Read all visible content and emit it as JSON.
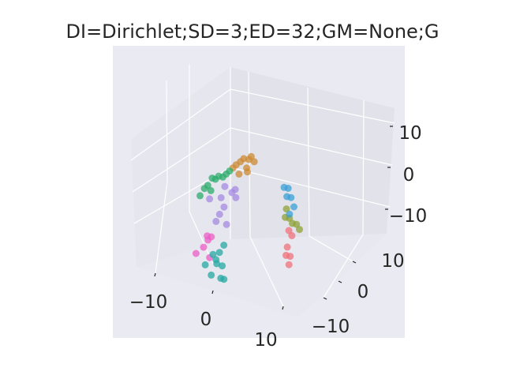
{
  "chart_data": {
    "type": "scatter",
    "projection": "3d",
    "title": "DI=Dirichlet;SD=3;ED=32;GM=None;G",
    "xlabel": "",
    "ylabel": "",
    "zlabel": "",
    "xlim": [
      -15,
      15
    ],
    "ylim": [
      -15,
      15
    ],
    "zlim": [
      -15,
      15
    ],
    "x_ticks": [
      "−10",
      "0",
      "10"
    ],
    "y_ticks": [
      "−10",
      "0",
      "10"
    ],
    "z_ticks": [
      "−10",
      "0",
      "10"
    ],
    "x_tick_values": [
      -10,
      0,
      10
    ],
    "y_tick_values": [
      -10,
      0,
      10
    ],
    "z_tick_values": [
      -10,
      0,
      10
    ],
    "grid": true,
    "legend": "none",
    "pane_color": "#eaeaf2",
    "series": [
      {
        "color": "#cc8a33",
        "points": [
          [
            -2,
            -1,
            12
          ],
          [
            -3,
            -1,
            11
          ],
          [
            -1,
            0,
            12
          ],
          [
            -4,
            -2,
            10
          ],
          [
            -2,
            -2,
            9
          ],
          [
            0,
            0,
            11
          ],
          [
            -3,
            1,
            10
          ],
          [
            -1,
            -1,
            10
          ],
          [
            -2,
            0,
            8
          ],
          [
            -3,
            -2,
            11
          ]
        ]
      },
      {
        "color": "#2eac6b",
        "points": [
          [
            -8,
            -3,
            7
          ],
          [
            -9,
            -4,
            6
          ],
          [
            -7,
            -3,
            8
          ],
          [
            -10,
            -4,
            5
          ],
          [
            -6,
            -2,
            8
          ],
          [
            -8,
            -4,
            5
          ],
          [
            -9,
            -3,
            7
          ],
          [
            -7,
            -2,
            7
          ],
          [
            -10,
            -5,
            4
          ],
          [
            -5,
            -2,
            9
          ]
        ]
      },
      {
        "color": "#a48ae0",
        "points": [
          [
            -5,
            -3,
            6
          ],
          [
            -4,
            -2,
            4
          ],
          [
            -6,
            -3,
            3
          ],
          [
            -4,
            -1,
            2
          ],
          [
            -5,
            -4,
            0
          ],
          [
            -6,
            -4,
            -2
          ],
          [
            -3,
            -2,
            5
          ],
          [
            -7,
            -5,
            4
          ],
          [
            -5,
            -3,
            1
          ],
          [
            -4,
            -3,
            -3
          ]
        ]
      },
      {
        "color": "#ec5ec7",
        "points": [
          [
            -6,
            -5,
            -5
          ],
          [
            -7,
            -6,
            -7
          ],
          [
            -5,
            -6,
            -9
          ],
          [
            -8,
            -7,
            -8
          ],
          [
            -6,
            -6,
            -4
          ],
          [
            -7,
            -5,
            -6
          ]
        ]
      },
      {
        "color": "#27aaa3",
        "points": [
          [
            -4,
            -6,
            -8
          ],
          [
            -3,
            -6,
            -9
          ],
          [
            -2,
            -5,
            -6
          ],
          [
            -1,
            -6,
            -10
          ],
          [
            0,
            -7,
            -12
          ],
          [
            -5,
            -7,
            -10
          ],
          [
            -3,
            -7,
            -12
          ],
          [
            -2,
            -6,
            -7
          ],
          [
            1,
            -7,
            -12
          ],
          [
            -4,
            -5,
            -11
          ]
        ]
      },
      {
        "color": "#f0707a",
        "points": [
          [
            10,
            1,
            -8
          ],
          [
            11,
            1,
            -10
          ],
          [
            12,
            0,
            -11
          ],
          [
            10,
            2,
            -6
          ],
          [
            11,
            0,
            -9
          ],
          [
            9,
            2,
            -5
          ]
        ]
      },
      {
        "color": "#8fa237",
        "points": [
          [
            9,
            2,
            -2
          ],
          [
            10,
            3,
            -4
          ],
          [
            9,
            1,
            -1
          ],
          [
            10,
            2,
            -3
          ],
          [
            8,
            2,
            0
          ],
          [
            11,
            3,
            -5
          ]
        ]
      },
      {
        "color": "#3aa0d5",
        "points": [
          [
            7,
            2,
            5
          ],
          [
            8,
            3,
            2
          ],
          [
            9,
            3,
            0
          ],
          [
            8,
            2,
            3
          ],
          [
            7,
            3,
            4
          ],
          [
            9,
            2,
            -1
          ]
        ]
      }
    ]
  }
}
